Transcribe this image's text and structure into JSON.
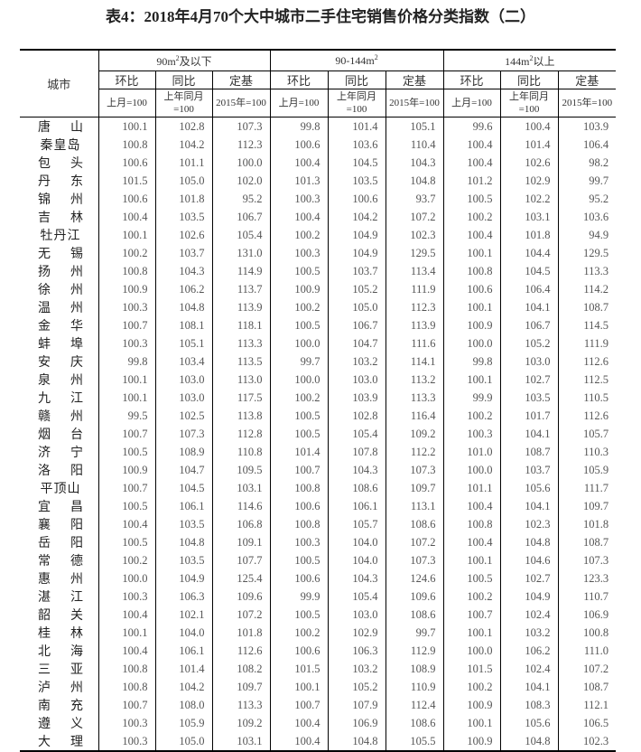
{
  "title": "表4：2018年4月70个大中城市二手住宅销售价格分类指数（二）",
  "header": {
    "city": "城市",
    "groups": [
      {
        "pre": "90m",
        "sup": "2",
        "post": "及以下"
      },
      {
        "pre": "90-144m",
        "sup": "2",
        "post": ""
      },
      {
        "pre": "144m",
        "sup": "2",
        "post": "以上"
      }
    ],
    "sub": [
      "环比",
      "同比",
      "定基"
    ],
    "base": [
      "上月=100",
      "上年同月=100",
      "2015年=100"
    ]
  },
  "rows": [
    {
      "city": "唐山",
      "v": [
        "100.1",
        "102.8",
        "107.3",
        "99.8",
        "101.4",
        "105.1",
        "99.6",
        "100.4",
        "103.9"
      ]
    },
    {
      "city": "秦皇岛",
      "v": [
        "100.8",
        "104.2",
        "112.3",
        "100.6",
        "103.6",
        "110.4",
        "100.4",
        "101.4",
        "106.4"
      ]
    },
    {
      "city": "包头",
      "v": [
        "100.6",
        "101.1",
        "100.0",
        "100.4",
        "104.5",
        "104.3",
        "100.4",
        "102.6",
        "98.2"
      ]
    },
    {
      "city": "丹东",
      "v": [
        "101.5",
        "105.0",
        "102.0",
        "101.3",
        "103.5",
        "104.8",
        "101.2",
        "102.9",
        "99.7"
      ]
    },
    {
      "city": "锦州",
      "v": [
        "100.6",
        "101.8",
        "95.2",
        "100.3",
        "100.6",
        "93.7",
        "100.5",
        "102.2",
        "95.2"
      ]
    },
    {
      "city": "吉林",
      "v": [
        "100.4",
        "103.5",
        "106.7",
        "100.4",
        "104.2",
        "107.2",
        "100.2",
        "103.1",
        "103.6"
      ]
    },
    {
      "city": "牡丹江",
      "v": [
        "100.1",
        "102.6",
        "105.4",
        "100.2",
        "104.9",
        "102.3",
        "100.4",
        "101.8",
        "94.9"
      ]
    },
    {
      "city": "无锡",
      "v": [
        "100.2",
        "103.7",
        "131.0",
        "100.3",
        "104.9",
        "129.5",
        "100.1",
        "104.4",
        "129.5"
      ]
    },
    {
      "city": "扬州",
      "v": [
        "100.8",
        "104.3",
        "114.9",
        "100.5",
        "103.7",
        "113.4",
        "100.8",
        "104.5",
        "113.3"
      ]
    },
    {
      "city": "徐州",
      "v": [
        "100.9",
        "106.2",
        "113.7",
        "100.9",
        "105.2",
        "111.9",
        "100.6",
        "106.4",
        "114.2"
      ]
    },
    {
      "city": "温州",
      "v": [
        "100.3",
        "104.8",
        "113.9",
        "100.2",
        "105.0",
        "112.3",
        "100.1",
        "104.1",
        "108.7"
      ]
    },
    {
      "city": "金华",
      "v": [
        "100.7",
        "108.1",
        "118.1",
        "100.5",
        "106.7",
        "113.9",
        "100.9",
        "106.7",
        "114.5"
      ]
    },
    {
      "city": "蚌埠",
      "v": [
        "100.3",
        "105.1",
        "113.3",
        "100.0",
        "104.7",
        "111.6",
        "100.0",
        "105.2",
        "111.9"
      ]
    },
    {
      "city": "安庆",
      "v": [
        "99.8",
        "103.4",
        "113.5",
        "99.7",
        "103.2",
        "114.1",
        "99.8",
        "103.0",
        "112.6"
      ]
    },
    {
      "city": "泉州",
      "v": [
        "100.1",
        "103.0",
        "113.0",
        "100.0",
        "103.0",
        "113.2",
        "100.1",
        "102.7",
        "112.5"
      ]
    },
    {
      "city": "九江",
      "v": [
        "100.1",
        "103.0",
        "117.5",
        "100.2",
        "103.9",
        "113.3",
        "99.9",
        "103.5",
        "110.5"
      ]
    },
    {
      "city": "赣州",
      "v": [
        "99.5",
        "102.5",
        "113.8",
        "100.5",
        "102.8",
        "116.4",
        "100.2",
        "101.7",
        "112.6"
      ]
    },
    {
      "city": "烟台",
      "v": [
        "100.7",
        "107.3",
        "112.8",
        "100.5",
        "105.4",
        "109.2",
        "100.3",
        "104.1",
        "105.7"
      ]
    },
    {
      "city": "济宁",
      "v": [
        "100.5",
        "108.9",
        "110.8",
        "101.4",
        "107.8",
        "112.2",
        "101.0",
        "108.7",
        "110.3"
      ]
    },
    {
      "city": "洛阳",
      "v": [
        "100.9",
        "104.7",
        "109.5",
        "100.7",
        "104.3",
        "107.3",
        "100.0",
        "103.7",
        "105.9"
      ]
    },
    {
      "city": "平顶山",
      "v": [
        "100.7",
        "104.5",
        "103.1",
        "100.8",
        "108.6",
        "109.7",
        "101.1",
        "105.6",
        "111.7"
      ]
    },
    {
      "city": "宜昌",
      "v": [
        "100.5",
        "106.1",
        "114.6",
        "100.6",
        "106.1",
        "113.1",
        "100.4",
        "104.1",
        "109.7"
      ]
    },
    {
      "city": "襄阳",
      "v": [
        "100.4",
        "103.5",
        "106.8",
        "100.8",
        "105.7",
        "108.6",
        "100.8",
        "102.3",
        "101.8"
      ]
    },
    {
      "city": "岳阳",
      "v": [
        "100.5",
        "104.8",
        "109.1",
        "100.3",
        "104.0",
        "107.2",
        "100.4",
        "104.8",
        "108.7"
      ]
    },
    {
      "city": "常德",
      "v": [
        "100.2",
        "103.5",
        "107.7",
        "100.5",
        "104.0",
        "107.3",
        "100.1",
        "104.6",
        "107.3"
      ]
    },
    {
      "city": "惠州",
      "v": [
        "100.0",
        "104.9",
        "125.4",
        "100.6",
        "104.3",
        "124.6",
        "100.5",
        "102.7",
        "123.3"
      ]
    },
    {
      "city": "湛江",
      "v": [
        "100.3",
        "106.3",
        "109.6",
        "99.9",
        "105.4",
        "109.6",
        "100.2",
        "104.9",
        "110.7"
      ]
    },
    {
      "city": "韶关",
      "v": [
        "100.4",
        "102.1",
        "107.2",
        "100.5",
        "103.0",
        "108.6",
        "100.7",
        "102.4",
        "106.9"
      ]
    },
    {
      "city": "桂林",
      "v": [
        "100.1",
        "104.0",
        "101.8",
        "100.2",
        "102.9",
        "99.7",
        "100.1",
        "103.2",
        "100.8"
      ]
    },
    {
      "city": "北海",
      "v": [
        "100.4",
        "106.1",
        "112.6",
        "100.6",
        "106.3",
        "112.9",
        "100.0",
        "106.2",
        "111.0"
      ]
    },
    {
      "city": "三亚",
      "v": [
        "100.8",
        "101.4",
        "108.2",
        "101.5",
        "103.2",
        "108.9",
        "101.5",
        "102.4",
        "107.2"
      ]
    },
    {
      "city": "泸州",
      "v": [
        "100.8",
        "104.2",
        "109.7",
        "100.1",
        "105.2",
        "110.9",
        "100.2",
        "104.1",
        "108.7"
      ]
    },
    {
      "city": "南充",
      "v": [
        "100.7",
        "108.0",
        "113.3",
        "100.7",
        "107.9",
        "112.4",
        "100.9",
        "108.3",
        "112.1"
      ]
    },
    {
      "city": "遵义",
      "v": [
        "100.3",
        "105.9",
        "109.2",
        "100.4",
        "106.9",
        "108.6",
        "100.1",
        "105.6",
        "106.5"
      ]
    },
    {
      "city": "大理",
      "v": [
        "100.3",
        "105.0",
        "103.1",
        "100.4",
        "104.8",
        "105.5",
        "100.9",
        "104.8",
        "102.3"
      ]
    }
  ]
}
